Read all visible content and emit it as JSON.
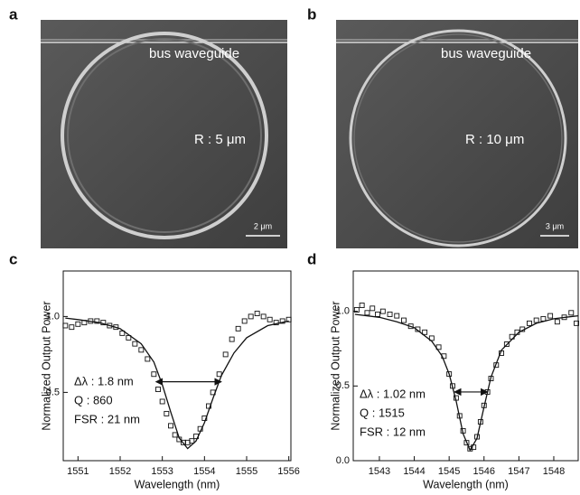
{
  "panels": [
    {
      "label": "a",
      "waveguide": "bus waveguide",
      "radius": "R : 5 μm",
      "scale": "2 μm"
    },
    {
      "label": "b",
      "waveguide": "bus waveguide",
      "radius": "R : 10 μm",
      "scale": "3 μm"
    }
  ],
  "chart_data": [
    {
      "type": "scatter",
      "label": "c",
      "xlabel": "Wavelength (nm)",
      "ylabel": "Normalized Output Power",
      "color": "#111",
      "xlim": [
        1550.65,
        1556.05
      ],
      "xticks": [
        1551,
        1552,
        1553,
        1554,
        1555,
        1556
      ],
      "ylim": [
        0.05,
        1.3
      ],
      "yticks": [
        0.5,
        {
          "value": 1,
          "label": "1.0"
        }
      ],
      "points": {
        "x": [
          1550.7,
          1550.85,
          1551.0,
          1551.15,
          1551.3,
          1551.45,
          1551.6,
          1551.75,
          1551.9,
          1552.05,
          1552.2,
          1552.35,
          1552.5,
          1552.65,
          1552.8,
          1552.9,
          1553.0,
          1553.1,
          1553.2,
          1553.3,
          1553.4,
          1553.5,
          1553.6,
          1553.7,
          1553.8,
          1553.9,
          1554.0,
          1554.1,
          1554.2,
          1554.35,
          1554.5,
          1554.65,
          1554.8,
          1554.95,
          1555.1,
          1555.25,
          1555.4,
          1555.55,
          1555.7,
          1555.85,
          1556.0
        ],
        "y": [
          0.94,
          0.93,
          0.95,
          0.96,
          0.97,
          0.97,
          0.96,
          0.94,
          0.93,
          0.89,
          0.86,
          0.82,
          0.78,
          0.72,
          0.62,
          0.52,
          0.44,
          0.36,
          0.28,
          0.22,
          0.19,
          0.17,
          0.17,
          0.18,
          0.21,
          0.26,
          0.33,
          0.41,
          0.5,
          0.62,
          0.75,
          0.85,
          0.92,
          0.97,
          1.0,
          1.02,
          1.0,
          0.98,
          0.96,
          0.97,
          0.98
        ]
      },
      "fit": {
        "x": [
          1550.7,
          1551.0,
          1551.5,
          1552.0,
          1552.5,
          1552.8,
          1553.0,
          1553.2,
          1553.4,
          1553.6,
          1553.8,
          1554.0,
          1554.2,
          1554.4,
          1554.7,
          1555.0,
          1555.5,
          1556.0
        ],
        "y": [
          0.99,
          0.98,
          0.96,
          0.92,
          0.82,
          0.7,
          0.55,
          0.37,
          0.2,
          0.13,
          0.18,
          0.3,
          0.46,
          0.61,
          0.76,
          0.86,
          0.94,
          0.97
        ]
      },
      "fwhm_arrow": {
        "x": [
          1552.85,
          1554.4
        ],
        "y": 0.57
      },
      "annotations": [
        "Δλ : 1.8 nm",
        "Q : 860",
        "FSR : 21 nm"
      ]
    },
    {
      "type": "scatter",
      "label": "d",
      "xlabel": "Wavelength (nm)",
      "ylabel": "Normalized Output Power",
      "color": "#111",
      "xlim": [
        1542.25,
        1548.7
      ],
      "xticks": [
        1543,
        1544,
        1545,
        1546,
        1547,
        1548
      ],
      "ylim": [
        0,
        1.27
      ],
      "yticks": [
        {
          "value": 0,
          "label": "0.0"
        },
        0.5,
        {
          "value": 1,
          "label": "1.0"
        }
      ],
      "points": {
        "x": [
          1542.35,
          1542.5,
          1542.65,
          1542.8,
          1542.95,
          1543.1,
          1543.3,
          1543.5,
          1543.7,
          1543.9,
          1544.1,
          1544.3,
          1544.5,
          1544.7,
          1544.85,
          1545.0,
          1545.1,
          1545.2,
          1545.3,
          1545.4,
          1545.5,
          1545.6,
          1545.7,
          1545.8,
          1545.9,
          1546.0,
          1546.1,
          1546.2,
          1546.35,
          1546.5,
          1546.65,
          1546.8,
          1546.95,
          1547.1,
          1547.3,
          1547.5,
          1547.7,
          1547.9,
          1548.1,
          1548.3,
          1548.5,
          1548.65
        ],
        "y": [
          1.01,
          1.04,
          0.99,
          1.02,
          0.98,
          1.0,
          0.98,
          0.97,
          0.94,
          0.9,
          0.88,
          0.86,
          0.82,
          0.76,
          0.7,
          0.58,
          0.5,
          0.42,
          0.3,
          0.2,
          0.12,
          0.08,
          0.09,
          0.16,
          0.26,
          0.37,
          0.46,
          0.55,
          0.64,
          0.72,
          0.78,
          0.83,
          0.86,
          0.88,
          0.92,
          0.94,
          0.95,
          0.97,
          0.93,
          0.96,
          0.99,
          0.92
        ]
      },
      "fit": {
        "x": [
          1542.3,
          1543.0,
          1543.5,
          1544.0,
          1544.5,
          1544.8,
          1545.0,
          1545.2,
          1545.4,
          1545.6,
          1545.8,
          1546.0,
          1546.2,
          1546.5,
          1547.0,
          1547.5,
          1548.0,
          1548.7
        ],
        "y": [
          0.98,
          0.96,
          0.93,
          0.89,
          0.8,
          0.7,
          0.58,
          0.4,
          0.18,
          0.07,
          0.15,
          0.36,
          0.56,
          0.74,
          0.86,
          0.92,
          0.95,
          0.97
        ]
      },
      "fwhm_arrow": {
        "x": [
          1545.15,
          1546.1
        ],
        "y": 0.46
      },
      "annotations": [
        "Δλ : 1.02 nm",
        "Q : 1515",
        "FSR : 12 nm"
      ]
    }
  ]
}
